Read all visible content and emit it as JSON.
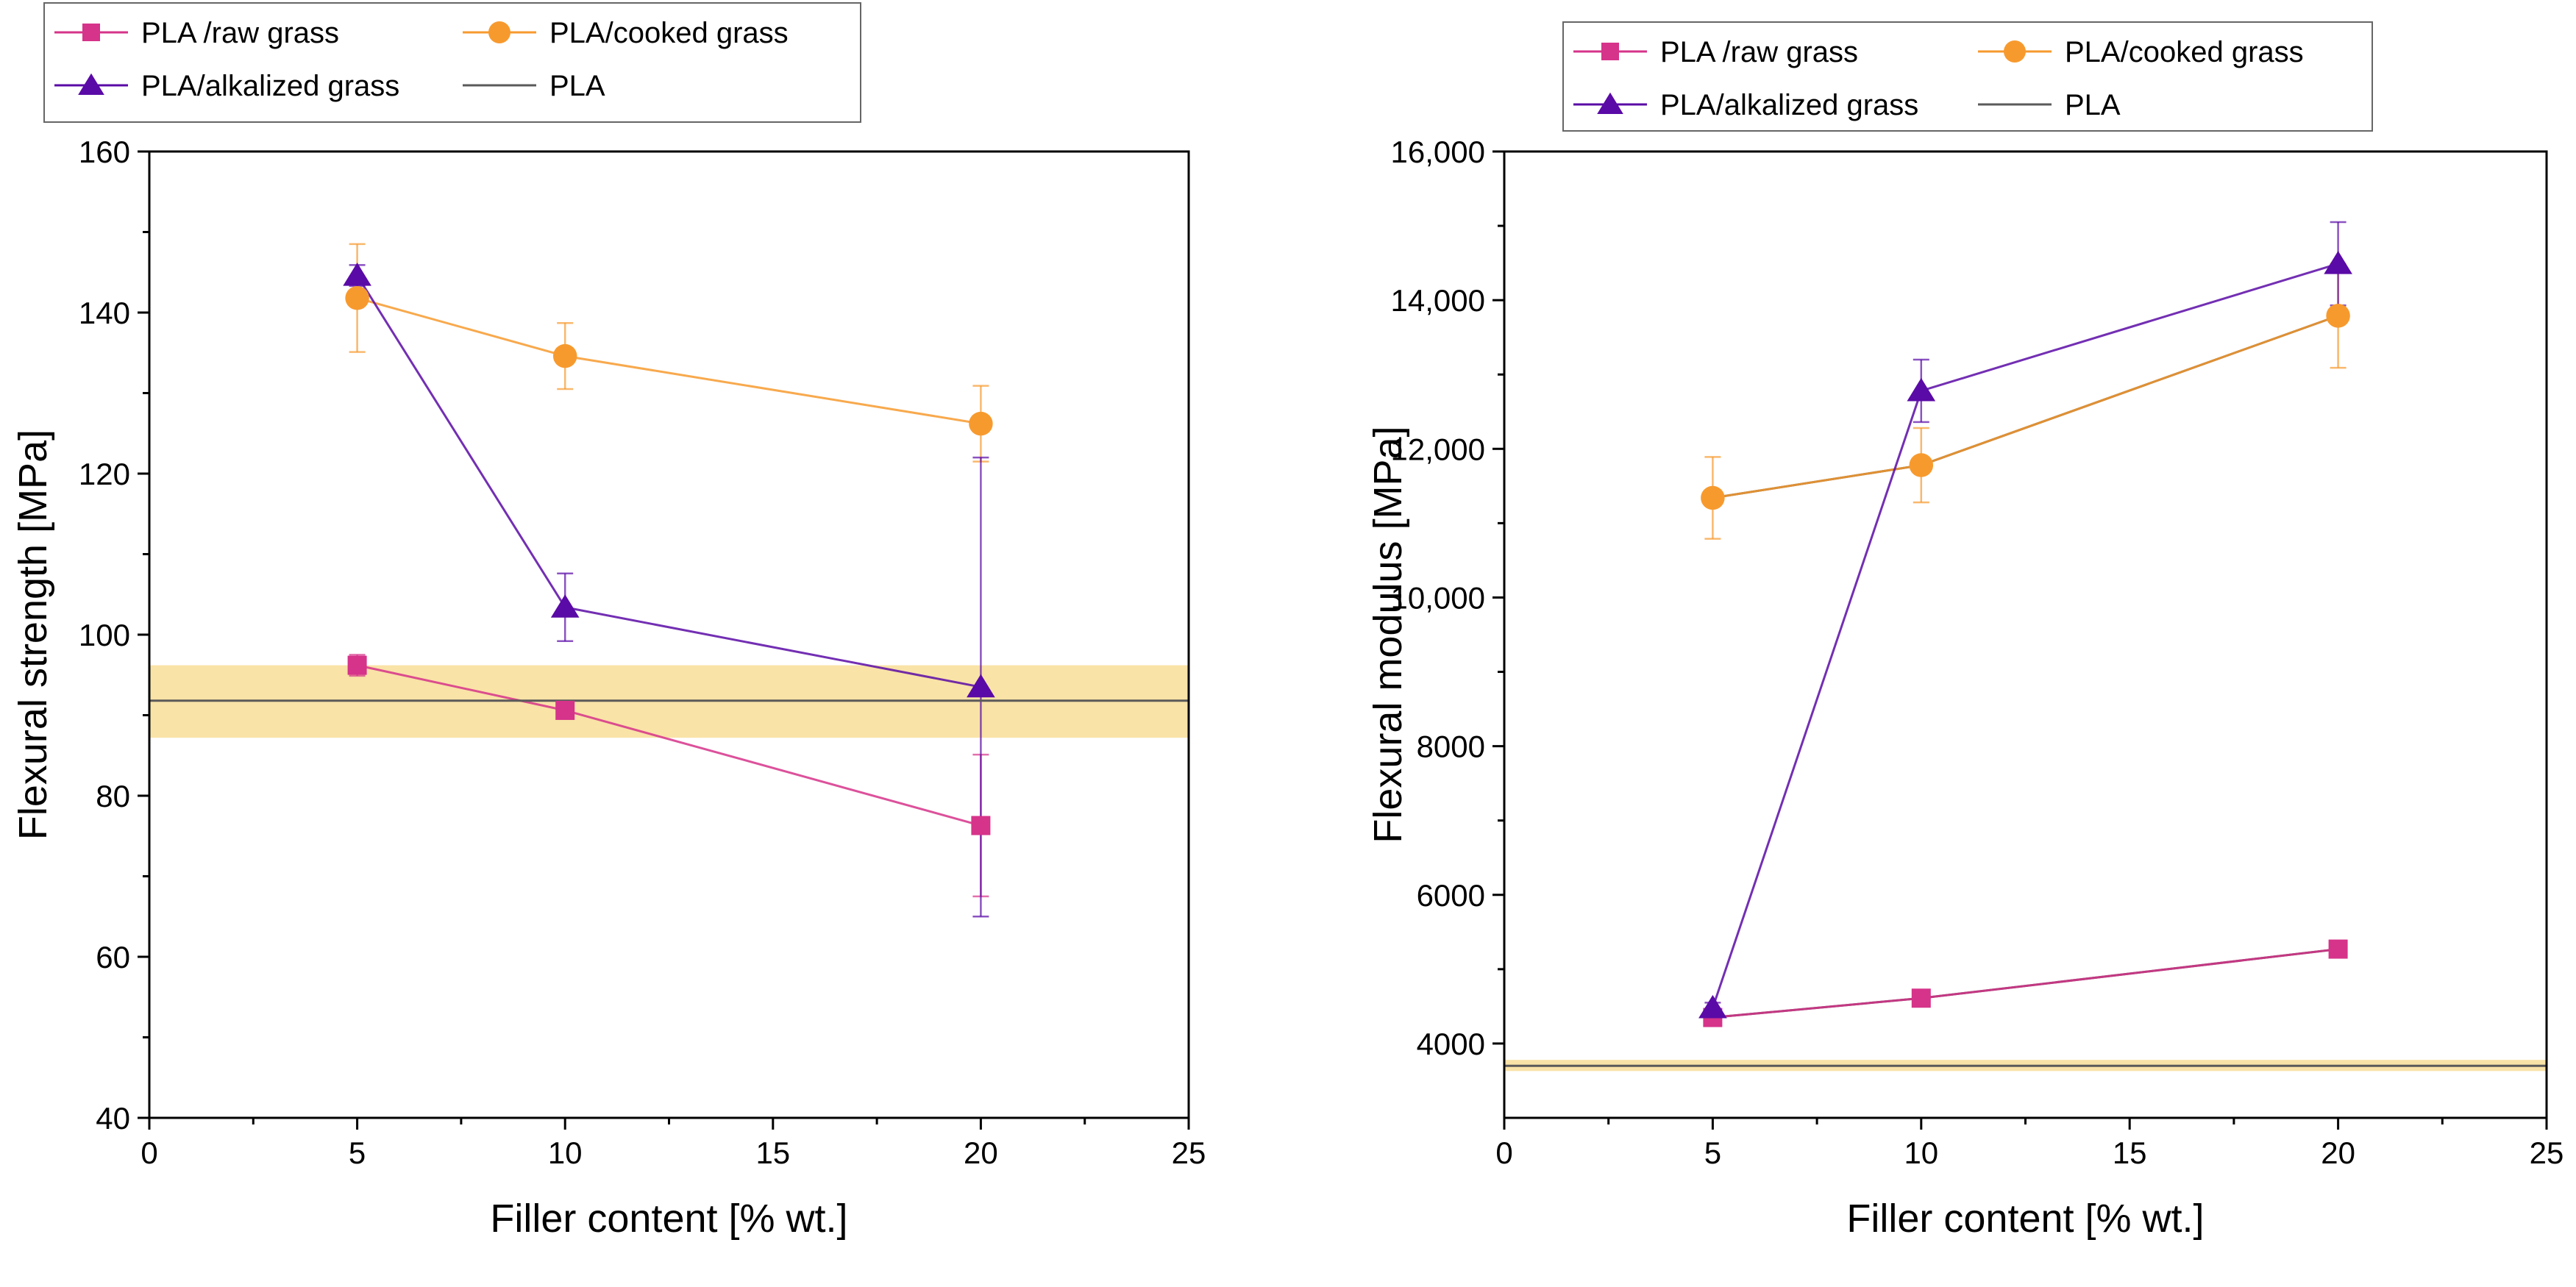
{
  "colors": {
    "raw": "#d6338a",
    "cooked": "#f79a2e",
    "alkalized": "#5a0aa6",
    "pla": "#5a5a5a",
    "band": "#f7d98a"
  },
  "chart_data": [
    {
      "type": "line",
      "xlabel": "Filler content [% wt.]",
      "ylabel": "Flexural strength [MPa]",
      "xlim": [
        0,
        25
      ],
      "ylim": [
        40,
        160
      ],
      "xticks": [
        0,
        5,
        10,
        15,
        20,
        25
      ],
      "xtick_labels": [
        "0",
        "5",
        "10",
        "15",
        "20",
        "25"
      ],
      "yticks": [
        40,
        60,
        80,
        100,
        120,
        140,
        160
      ],
      "ytick_labels": [
        "40",
        "60",
        "80",
        "100",
        "120",
        "140",
        "160"
      ],
      "legend": [
        "PLA /raw grass",
        "PLA/cooked grass",
        "PLA/alkalized grass",
        "PLA"
      ],
      "legend_position": "top-left, above plot",
      "reference": {
        "name": "PLA",
        "value": 91.8,
        "band": [
          87.2,
          96.2
        ]
      },
      "series": [
        {
          "name": "PLA /raw grass",
          "marker": "square",
          "x": [
            5,
            10,
            20
          ],
          "y": [
            96.2,
            90.6,
            76.3
          ],
          "err": [
            1.3,
            1.0,
            8.8
          ]
        },
        {
          "name": "PLA/cooked grass",
          "marker": "circle",
          "x": [
            5,
            10,
            20
          ],
          "y": [
            141.8,
            134.6,
            126.2
          ],
          "err": [
            6.7,
            4.1,
            4.7
          ]
        },
        {
          "name": "PLA/alkalized grass",
          "marker": "triangle",
          "x": [
            5,
            10,
            20
          ],
          "y": [
            144.6,
            103.4,
            93.5
          ],
          "err": [
            1.3,
            4.2,
            28.5
          ]
        }
      ]
    },
    {
      "type": "line",
      "xlabel": "Filler content [% wt.]",
      "ylabel": "Flexural modulus [MPa]",
      "xlim": [
        0,
        25
      ],
      "ylim": [
        3000,
        16000
      ],
      "xticks": [
        0,
        5,
        10,
        15,
        20,
        25
      ],
      "xtick_labels": [
        "0",
        "5",
        "10",
        "15",
        "20",
        "25"
      ],
      "yticks": [
        4000,
        6000,
        8000,
        10000,
        12000,
        14000,
        16000
      ],
      "ytick_labels": [
        "4000",
        "6000",
        "8000",
        "10,000",
        "12,000",
        "14,000",
        "16,000"
      ],
      "legend": [
        "PLA /raw grass",
        "PLA/cooked grass",
        "PLA/alkalized grass",
        "PLA"
      ],
      "legend_position": "top-right, above plot",
      "reference": {
        "name": "PLA",
        "value": 3700,
        "band": [
          3630,
          3780
        ]
      },
      "series": [
        {
          "name": "PLA /raw grass",
          "marker": "square",
          "x": [
            5,
            10,
            20
          ],
          "y": [
            4350,
            4610,
            5270
          ],
          "err": [
            40,
            40,
            60
          ]
        },
        {
          "name": "PLA/cooked grass",
          "marker": "circle",
          "x": [
            5,
            10,
            20
          ],
          "y": [
            11340,
            11780,
            13790
          ],
          "err": [
            550,
            500,
            700
          ]
        },
        {
          "name": "PLA/alkalized grass",
          "marker": "triangle",
          "x": [
            5,
            10,
            20
          ],
          "y": [
            4480,
            12780,
            14490
          ],
          "err": [
            70,
            420,
            560
          ]
        }
      ],
      "connector": {
        "x": [
          5,
          10,
          20
        ],
        "y": [
          4350,
          4610,
          5270
        ],
        "x2": [
          5,
          10,
          20
        ],
        "y2": [
          11340,
          11780,
          13790
        ]
      }
    }
  ]
}
